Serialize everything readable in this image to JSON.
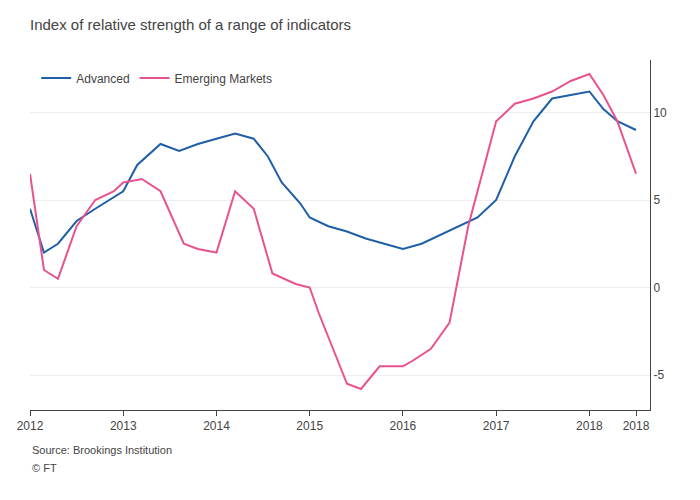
{
  "chart_data": {
    "type": "line",
    "title": "Index of relative strength of a range of indicators",
    "annotations": [
      "Source: Brookings Institution",
      "© FT"
    ],
    "series": [
      {
        "name": "Advanced",
        "color": "#1f5fa6",
        "x": [
          2012.0,
          2012.15,
          2012.3,
          2012.5,
          2012.7,
          2012.9,
          2013.0,
          2013.15,
          2013.4,
          2013.6,
          2013.8,
          2014.0,
          2014.2,
          2014.4,
          2014.55,
          2014.7,
          2014.9,
          2015.0,
          2015.2,
          2015.4,
          2015.6,
          2015.8,
          2016.0,
          2016.2,
          2016.4,
          2016.6,
          2016.8,
          2017.0,
          2017.2,
          2017.4,
          2017.6,
          2017.8,
          2018.0,
          2018.15,
          2018.3,
          2018.5
        ],
        "values": [
          4.5,
          2.0,
          2.5,
          3.8,
          4.5,
          5.2,
          5.5,
          7.0,
          8.2,
          7.8,
          8.2,
          8.5,
          8.8,
          8.5,
          7.5,
          6.0,
          4.8,
          4.0,
          3.5,
          3.2,
          2.8,
          2.5,
          2.2,
          2.5,
          3.0,
          3.5,
          4.0,
          5.0,
          7.5,
          9.5,
          10.8,
          11.0,
          11.2,
          10.2,
          9.5,
          9.0
        ]
      },
      {
        "name": "Emerging Markets",
        "color": "#e8538f",
        "x": [
          2012.0,
          2012.15,
          2012.3,
          2012.5,
          2012.7,
          2012.9,
          2013.0,
          2013.2,
          2013.4,
          2013.65,
          2013.8,
          2014.0,
          2014.2,
          2014.4,
          2014.6,
          2014.85,
          2015.0,
          2015.1,
          2015.25,
          2015.4,
          2015.55,
          2015.75,
          2016.0,
          2016.1,
          2016.3,
          2016.5,
          2016.7,
          2017.0,
          2017.2,
          2017.4,
          2017.6,
          2017.8,
          2018.0,
          2018.15,
          2018.3,
          2018.5
        ],
        "values": [
          6.5,
          1.0,
          0.5,
          3.5,
          5.0,
          5.5,
          6.0,
          6.2,
          5.5,
          2.5,
          2.2,
          2.0,
          5.5,
          4.5,
          0.8,
          0.2,
          0.0,
          -1.5,
          -3.5,
          -5.5,
          -5.8,
          -4.5,
          -4.5,
          -4.2,
          -3.5,
          -2.0,
          3.5,
          9.5,
          10.5,
          10.8,
          11.2,
          11.8,
          12.2,
          11.0,
          9.5,
          6.5
        ]
      }
    ],
    "xlim": [
      2012.0,
      2018.65
    ],
    "xticks": [
      2012,
      2013,
      2014,
      2015,
      2016,
      2017,
      2018,
      {
        "value": 2018.5,
        "label": "2018"
      }
    ],
    "ylim": [
      -7,
      13
    ],
    "yticks": [
      -5,
      0,
      5,
      10
    ],
    "grid": true,
    "legend": "upper left"
  }
}
